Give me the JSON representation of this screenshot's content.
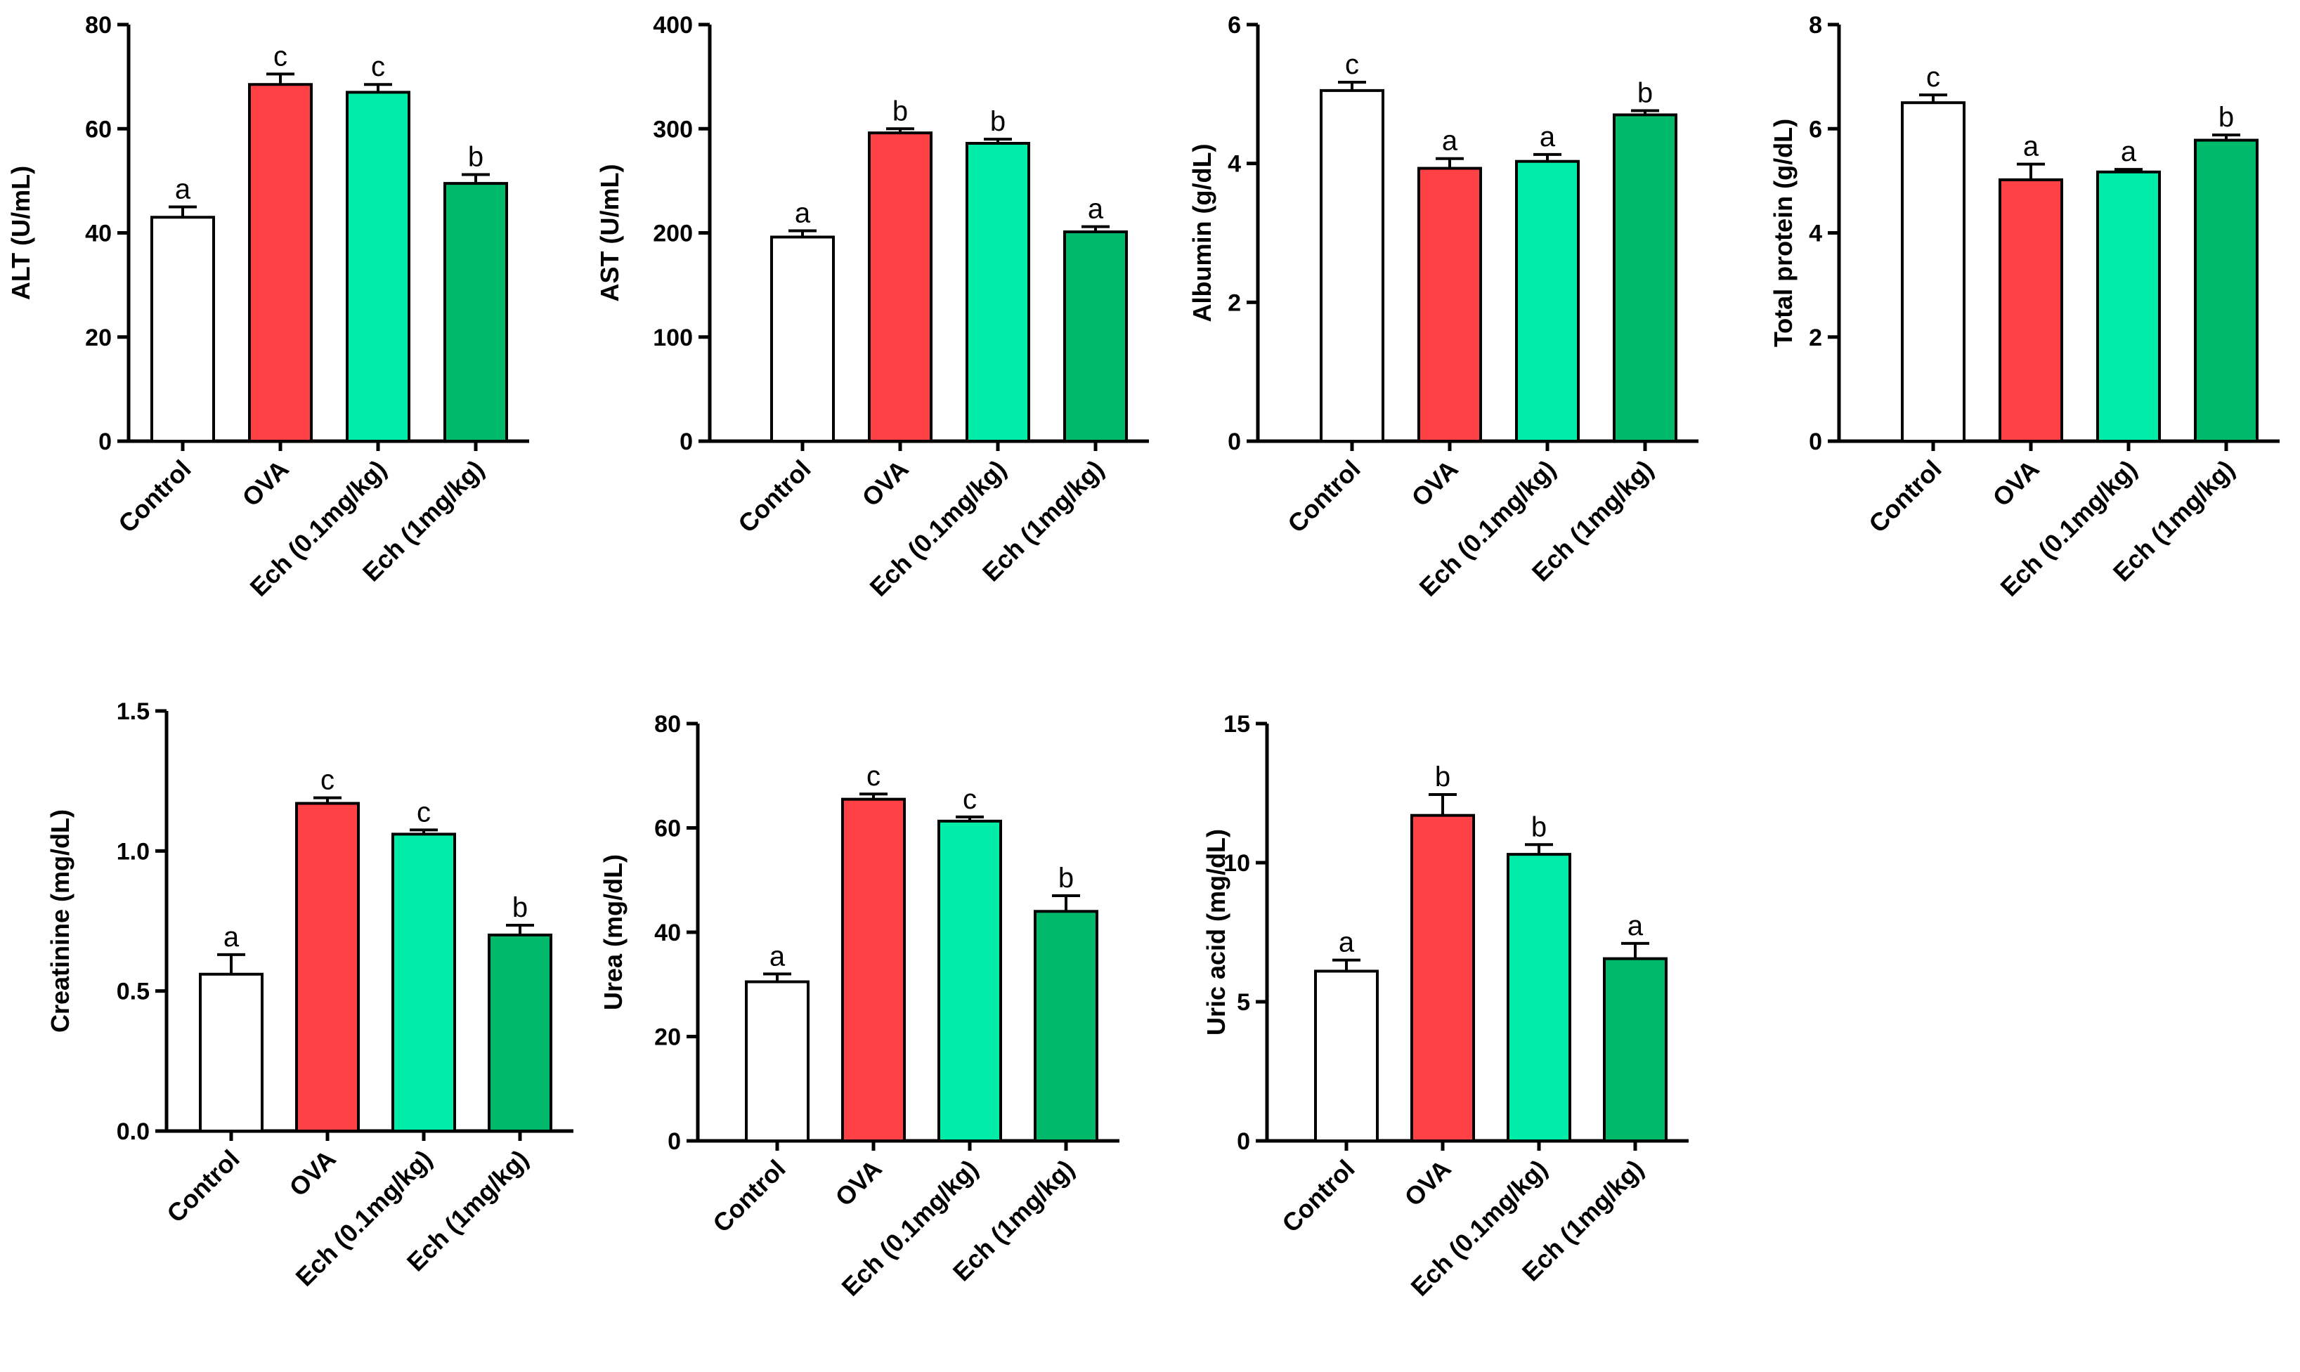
{
  "chart_data": [
    {
      "type": "bar",
      "id": "alt",
      "ylabel": "ALT (U/mL)",
      "ylim": [
        0,
        80
      ],
      "yticks": [
        "0",
        "20",
        "40",
        "60",
        "80"
      ],
      "categories": [
        "Control",
        "OVA",
        "Ech (0.1mg/kg)",
        "Ech (1mg/kg)"
      ],
      "values": [
        43,
        68.5,
        67,
        49.5
      ],
      "errors": [
        2,
        2,
        1.5,
        1.7
      ],
      "significance": [
        "a",
        "c",
        "c",
        "b"
      ]
    },
    {
      "type": "bar",
      "id": "ast",
      "ylabel": "AST (U/mL)",
      "ylim": [
        0,
        400
      ],
      "yticks": [
        "0",
        "100",
        "200",
        "300",
        "400"
      ],
      "categories": [
        "Control",
        "OVA",
        "Ech (0.1mg/kg)",
        "Ech (1mg/kg)"
      ],
      "values": [
        196,
        296,
        286,
        201
      ],
      "errors": [
        6,
        4,
        4,
        5
      ],
      "significance": [
        "a",
        "b",
        "b",
        "a"
      ]
    },
    {
      "type": "bar",
      "id": "albumin",
      "ylabel": "Albumin (g/dL)",
      "ylim": [
        0,
        6
      ],
      "yticks": [
        "0",
        "2",
        "4",
        "6"
      ],
      "categories": [
        "Control",
        "OVA",
        "Ech (0.1mg/kg)",
        "Ech (1mg/kg)"
      ],
      "values": [
        5.05,
        3.93,
        4.03,
        4.7
      ],
      "errors": [
        0.12,
        0.14,
        0.1,
        0.06
      ],
      "significance": [
        "c",
        "a",
        "a",
        "b"
      ]
    },
    {
      "type": "bar",
      "id": "total-protein",
      "ylabel": "Total protein (g/dL)",
      "ylim": [
        0,
        8
      ],
      "yticks": [
        "0",
        "2",
        "4",
        "6",
        "8"
      ],
      "categories": [
        "Control",
        "OVA",
        "Ech (0.1mg/kg)",
        "Ech (1mg/kg)"
      ],
      "values": [
        6.5,
        5.02,
        5.17,
        5.78
      ],
      "errors": [
        0.15,
        0.3,
        0.05,
        0.1
      ],
      "significance": [
        "c",
        "a",
        "a",
        "b"
      ]
    },
    {
      "type": "bar",
      "id": "creatinine",
      "ylabel": "Creatinine (mg/dL)",
      "ylim": [
        0,
        1.5
      ],
      "yticks": [
        "0.0",
        "0.5",
        "1.0",
        "1.5"
      ],
      "categories": [
        "Control",
        "OVA",
        "Ech (0.1mg/kg)",
        "Ech (1mg/kg)"
      ],
      "values": [
        0.56,
        1.17,
        1.06,
        0.7
      ],
      "errors": [
        0.07,
        0.02,
        0.015,
        0.035
      ],
      "significance": [
        "a",
        "c",
        "c",
        "b"
      ]
    },
    {
      "type": "bar",
      "id": "urea",
      "ylabel": "Urea (mg/dL)",
      "ylim": [
        0,
        80
      ],
      "yticks": [
        "0",
        "20",
        "40",
        "60",
        "80"
      ],
      "categories": [
        "Control",
        "OVA",
        "Ech (0.1mg/kg)",
        "Ech (1mg/kg)"
      ],
      "values": [
        30.5,
        65.5,
        61.3,
        44
      ],
      "errors": [
        1.5,
        1,
        0.8,
        3
      ],
      "significance": [
        "a",
        "c",
        "c",
        "b"
      ]
    },
    {
      "type": "bar",
      "id": "uric-acid",
      "ylabel": "Uric acid (mg/dL)",
      "ylim": [
        0,
        15
      ],
      "yticks": [
        "0",
        "5",
        "10",
        "15"
      ],
      "categories": [
        "Control",
        "OVA",
        "Ech (0.1mg/kg)",
        "Ech (1mg/kg)"
      ],
      "values": [
        6.1,
        11.7,
        10.3,
        6.55
      ],
      "errors": [
        0.4,
        0.75,
        0.35,
        0.55
      ],
      "significance": [
        "a",
        "b",
        "b",
        "a"
      ]
    }
  ],
  "colors": {
    "Control": "#ffffff",
    "OVA": "#ff4045",
    "Ech (0.1mg/kg)": "#00eca8",
    "Ech (1mg/kg)": "#00b96b"
  }
}
